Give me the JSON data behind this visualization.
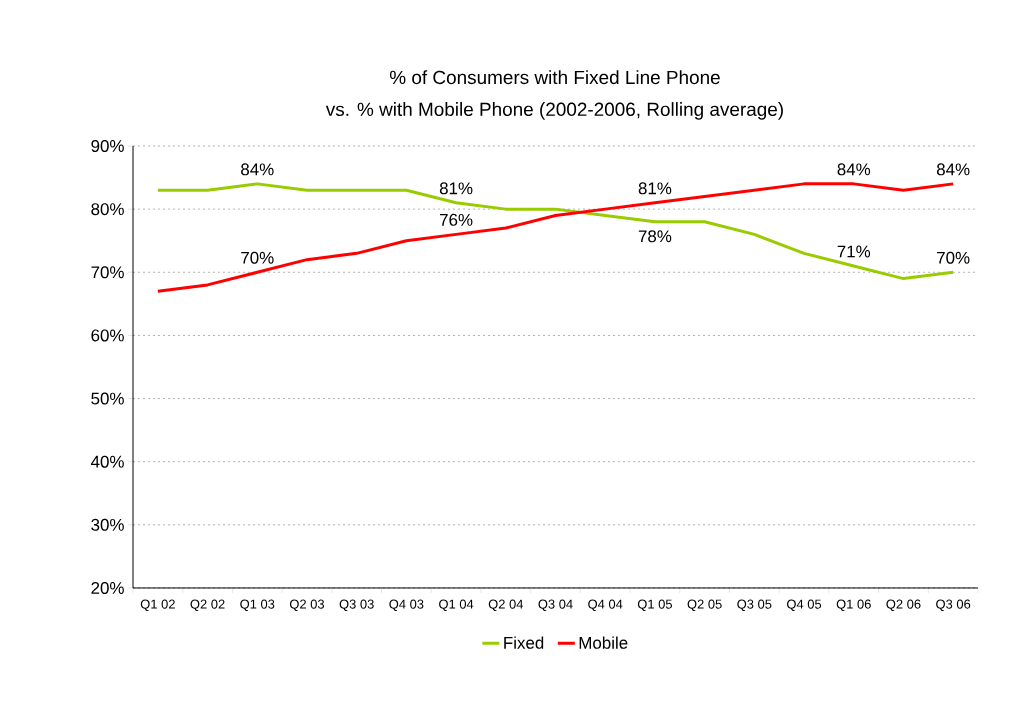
{
  "chart_data": {
    "type": "line",
    "title": "% of Consumers with Fixed Line Phone\nvs. % with Mobile Phone (2002-2006, Rolling average)",
    "categories": [
      "Q1 02",
      "Q2 02",
      "Q1 03",
      "Q2 03",
      "Q3 03",
      "Q4 03",
      "Q1 04",
      "Q2 04",
      "Q3 04",
      "Q4 04",
      "Q1 05",
      "Q2 05",
      "Q3 05",
      "Q4 05",
      "Q1 06",
      "Q2 06",
      "Q3 06"
    ],
    "series": [
      {
        "name": "Fixed",
        "color": "#99cc00",
        "values": [
          83,
          83,
          84,
          83,
          83,
          83,
          81,
          80,
          80,
          79,
          78,
          78,
          76,
          73,
          71,
          69,
          70
        ],
        "value_labels": [
          null,
          null,
          "84%",
          null,
          null,
          null,
          "81%",
          null,
          null,
          null,
          "78%",
          null,
          null,
          null,
          "71%",
          null,
          "70%"
        ]
      },
      {
        "name": "Mobile",
        "color": "#ff0000",
        "values": [
          67,
          68,
          70,
          72,
          73,
          75,
          76,
          77,
          79,
          80,
          81,
          82,
          83,
          84,
          84,
          83,
          84
        ],
        "value_labels": [
          null,
          null,
          "70%",
          null,
          null,
          null,
          "76%",
          null,
          null,
          null,
          "81%",
          null,
          null,
          null,
          "84%",
          null,
          "84%"
        ]
      }
    ],
    "ylim": [
      20,
      90
    ],
    "yticks": [
      {
        "value": 20,
        "label": "20%"
      },
      {
        "value": 30,
        "label": "30%"
      },
      {
        "value": 40,
        "label": "40%"
      },
      {
        "value": 50,
        "label": "50%"
      },
      {
        "value": 60,
        "label": "60%"
      },
      {
        "value": 70,
        "label": "70%"
      },
      {
        "value": 80,
        "label": "80%"
      },
      {
        "value": 90,
        "label": "90%"
      }
    ],
    "grid": "y",
    "legend": "bottom",
    "marker": "none",
    "line_style": "solid"
  }
}
